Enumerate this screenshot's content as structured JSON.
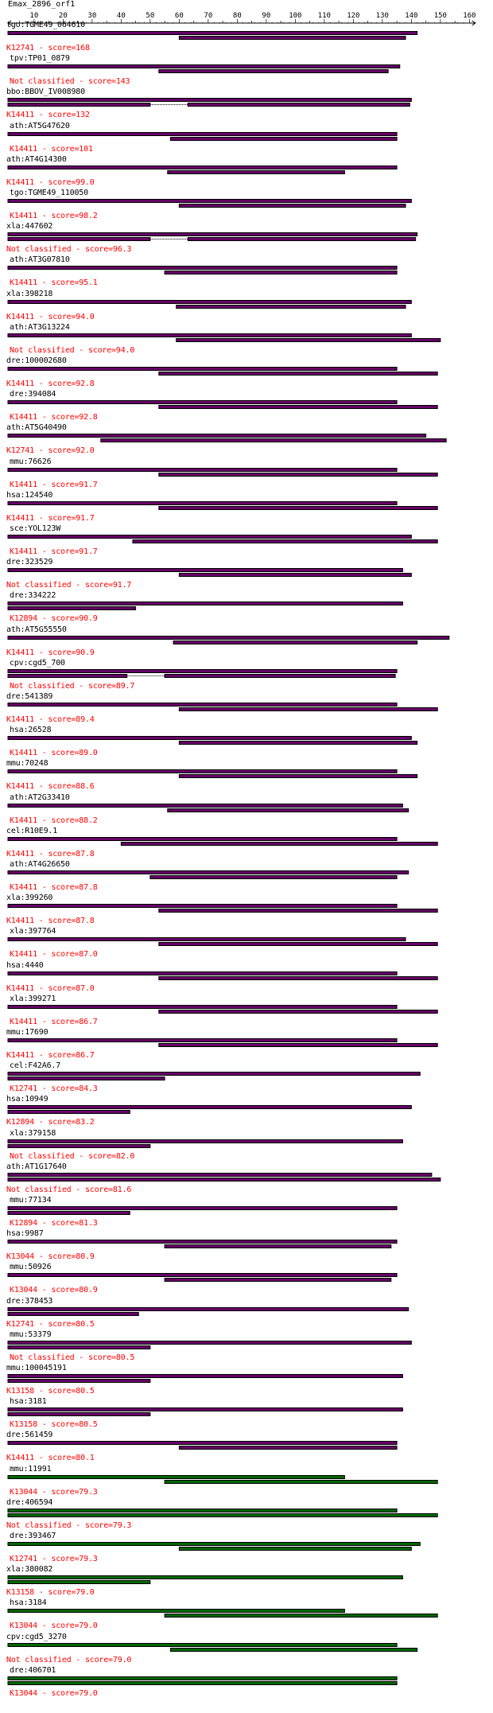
{
  "query": {
    "title": "Emax_2896_orf1",
    "ruler_ticks": [
      "10",
      "20",
      "30",
      "40",
      "50",
      "60",
      "70",
      "80",
      "90",
      "100",
      "110",
      "120",
      "130",
      "140",
      "150",
      "160"
    ],
    "length": 162
  },
  "colors": {
    "bar_purple": "#660066",
    "bar_green": "#006600",
    "bar_outline": "#000000",
    "score_text": "#ff0000",
    "gene_text": "#000000"
  },
  "entries": [
    {
      "gene": "tgo:TGME49_064610",
      "label": "K12741 - score=168",
      "color": "purple",
      "q": [
        1,
        142
      ],
      "h": [
        60,
        138
      ],
      "gap": false
    },
    {
      "gene": "tpv:TP01_0879",
      "label": "Not classified - score=143",
      "color": "purple",
      "q": [
        1,
        136
      ],
      "h": [
        53,
        132
      ],
      "gap": false
    },
    {
      "gene": "bbo:BBOV_IV008980",
      "label": "K14411 - score=132",
      "color": "purple",
      "q": [
        1,
        140
      ],
      "h": [
        1,
        50
      ],
      "gap": true
    },
    {
      "gene": "ath:AT5G47620",
      "label": "K14411 - score=101",
      "color": "purple",
      "q": [
        1,
        135
      ],
      "h": [
        57,
        135
      ],
      "gap": false
    },
    {
      "gene": "ath:AT4G14300",
      "label": "K14411 - score=99.0",
      "color": "purple",
      "q": [
        1,
        135
      ],
      "h": [
        56,
        117
      ],
      "gap": false
    },
    {
      "gene": "tgo:TGME49_110050",
      "label": "K14411 - score=98.2",
      "color": "purple",
      "q": [
        1,
        140
      ],
      "h": [
        60,
        138
      ],
      "gap": false
    },
    {
      "gene": "xla:447602",
      "label": "Not classified - score=96.3",
      "color": "purple",
      "q": [
        1,
        142
      ],
      "h": [
        1,
        50
      ],
      "gap": true
    },
    {
      "gene": "ath:AT3G07810",
      "label": "K14411 - score=95.1",
      "color": "purple",
      "q": [
        1,
        135
      ],
      "h": [
        55,
        135
      ],
      "gap": false
    },
    {
      "gene": "xla:398218",
      "label": "K14411 - score=94.0",
      "color": "purple",
      "q": [
        1,
        140
      ],
      "h": [
        59,
        138
      ],
      "gap": false
    },
    {
      "gene": "ath:AT3G13224",
      "label": "Not classified - score=94.0",
      "color": "purple",
      "q": [
        1,
        140
      ],
      "h": [
        59,
        150
      ],
      "gap": false
    },
    {
      "gene": "dre:100002680",
      "label": "K14411 - score=92.8",
      "color": "purple",
      "q": [
        1,
        135
      ],
      "h": [
        53,
        149
      ],
      "gap": false
    },
    {
      "gene": "dre:394084",
      "label": "K14411 - score=92.8",
      "color": "purple",
      "q": [
        1,
        135
      ],
      "h": [
        53,
        149
      ],
      "gap": false
    },
    {
      "gene": "ath:AT5G40490",
      "label": "K12741 - score=92.0",
      "color": "purple",
      "q": [
        1,
        145
      ],
      "h": [
        33,
        152
      ],
      "gap": false
    },
    {
      "gene": "mmu:76626",
      "label": "K14411 - score=91.7",
      "color": "purple",
      "q": [
        1,
        135
      ],
      "h": [
        53,
        149
      ],
      "gap": false
    },
    {
      "gene": "hsa:124540",
      "label": "K14411 - score=91.7",
      "color": "purple",
      "q": [
        1,
        135
      ],
      "h": [
        53,
        149
      ],
      "gap": false
    },
    {
      "gene": "sce:YOL123W",
      "label": "K14411 - score=91.7",
      "color": "purple",
      "q": [
        1,
        140
      ],
      "h": [
        44,
        149
      ],
      "gap": false
    },
    {
      "gene": "dre:323529",
      "label": "Not classified - score=91.7",
      "color": "purple",
      "q": [
        1,
        137
      ],
      "h": [
        60,
        140
      ],
      "gap": false
    },
    {
      "gene": "dre:334222",
      "label": "K12894 - score=90.9",
      "color": "purple",
      "q": [
        1,
        137
      ],
      "h": [
        1,
        45
      ],
      "gap": false
    },
    {
      "gene": "ath:AT5G55550",
      "label": "K14411 - score=90.9",
      "color": "purple",
      "q": [
        1,
        153
      ],
      "h": [
        58,
        142
      ],
      "gap": false
    },
    {
      "gene": "cpv:cgd5_700",
      "label": "Not classified - score=89.7",
      "color": "purple",
      "q": [
        1,
        135
      ],
      "h": [
        1,
        42
      ],
      "gap": true
    },
    {
      "gene": "dre:541389",
      "label": "K14411 - score=89.4",
      "color": "purple",
      "q": [
        1,
        135
      ],
      "h": [
        60,
        149
      ],
      "gap": false
    },
    {
      "gene": "hsa:26528",
      "label": "K14411 - score=89.0",
      "color": "purple",
      "q": [
        1,
        140
      ],
      "h": [
        60,
        142
      ],
      "gap": false
    },
    {
      "gene": "mmu:70248",
      "label": "K14411 - score=88.6",
      "color": "purple",
      "q": [
        1,
        135
      ],
      "h": [
        60,
        142
      ],
      "gap": false
    },
    {
      "gene": "ath:AT2G33410",
      "label": "K14411 - score=88.2",
      "color": "purple",
      "q": [
        1,
        137
      ],
      "h": [
        56,
        139
      ],
      "gap": false
    },
    {
      "gene": "cel:R10E9.1",
      "label": "K14411 - score=87.8",
      "color": "purple",
      "q": [
        1,
        135
      ],
      "h": [
        40,
        149
      ],
      "gap": false
    },
    {
      "gene": "ath:AT4G26650",
      "label": "K14411 - score=87.8",
      "color": "purple",
      "q": [
        1,
        139
      ],
      "h": [
        50,
        135
      ],
      "gap": false
    },
    {
      "gene": "xla:399260",
      "label": "K14411 - score=87.8",
      "color": "purple",
      "q": [
        1,
        135
      ],
      "h": [
        53,
        149
      ],
      "gap": false
    },
    {
      "gene": "xla:397764",
      "label": "K14411 - score=87.0",
      "color": "purple",
      "q": [
        1,
        138
      ],
      "h": [
        53,
        149
      ],
      "gap": false
    },
    {
      "gene": "hsa:4440",
      "label": "K14411 - score=87.0",
      "color": "purple",
      "q": [
        1,
        135
      ],
      "h": [
        53,
        149
      ],
      "gap": false
    },
    {
      "gene": "xla:399271",
      "label": "K14411 - score=86.7",
      "color": "purple",
      "q": [
        1,
        135
      ],
      "h": [
        53,
        149
      ],
      "gap": false
    },
    {
      "gene": "mmu:17690",
      "label": "K14411 - score=86.7",
      "color": "purple",
      "q": [
        1,
        135
      ],
      "h": [
        53,
        149
      ],
      "gap": false
    },
    {
      "gene": "cel:F42A6.7",
      "label": "K12741 - score=84.3",
      "color": "purple",
      "q": [
        1,
        143
      ],
      "h": [
        1,
        55
      ],
      "gap": false
    },
    {
      "gene": "hsa:10949",
      "label": "K12894 - score=83.2",
      "color": "purple",
      "q": [
        1,
        140
      ],
      "h": [
        1,
        43
      ],
      "gap": false
    },
    {
      "gene": "xla:379158",
      "label": "Not classified - score=82.0",
      "color": "purple",
      "q": [
        1,
        137
      ],
      "h": [
        1,
        50
      ],
      "gap": false
    },
    {
      "gene": "ath:AT1G17640",
      "label": "Not classified - score=81.6",
      "color": "purple",
      "q": [
        1,
        147
      ],
      "h": [
        1,
        150
      ],
      "gap": false
    },
    {
      "gene": "mmu:77134",
      "label": "K12894 - score=81.3",
      "color": "purple",
      "q": [
        1,
        135
      ],
      "h": [
        1,
        43
      ],
      "gap": false
    },
    {
      "gene": "hsa:9987",
      "label": "K13044 - score=80.9",
      "color": "purple",
      "q": [
        1,
        135
      ],
      "h": [
        55,
        133
      ],
      "gap": false
    },
    {
      "gene": "mmu:50926",
      "label": "K13044 - score=80.9",
      "color": "purple",
      "q": [
        1,
        135
      ],
      "h": [
        55,
        133
      ],
      "gap": false
    },
    {
      "gene": "dre:378453",
      "label": "K12741 - score=80.5",
      "color": "purple",
      "q": [
        1,
        139
      ],
      "h": [
        1,
        46
      ],
      "gap": false
    },
    {
      "gene": "mmu:53379",
      "label": "Not classified - score=80.5",
      "color": "purple",
      "q": [
        1,
        140
      ],
      "h": [
        1,
        50
      ],
      "gap": false
    },
    {
      "gene": "mmu:100045191",
      "label": "K13158 - score=80.5",
      "color": "purple",
      "q": [
        1,
        137
      ],
      "h": [
        1,
        50
      ],
      "gap": false
    },
    {
      "gene": "hsa:3181",
      "label": "K13158 - score=80.5",
      "color": "purple",
      "q": [
        1,
        137
      ],
      "h": [
        1,
        50
      ],
      "gap": false
    },
    {
      "gene": "dre:561459",
      "label": "K14411 - score=80.1",
      "color": "purple",
      "q": [
        1,
        135
      ],
      "h": [
        60,
        135
      ],
      "gap": false
    },
    {
      "gene": "mmu:11991",
      "label": "K13044 - score=79.3",
      "color": "green",
      "q": [
        1,
        117
      ],
      "h": [
        55,
        149
      ],
      "gap": false
    },
    {
      "gene": "dre:406594",
      "label": "Not classified - score=79.3",
      "color": "green",
      "q": [
        1,
        135
      ],
      "h": [
        1,
        149
      ],
      "gap": false
    },
    {
      "gene": "dre:393467",
      "label": "K12741 - score=79.3",
      "color": "green",
      "q": [
        1,
        143
      ],
      "h": [
        60,
        140
      ],
      "gap": false
    },
    {
      "gene": "xla:380082",
      "label": "K13158 - score=79.0",
      "color": "green",
      "q": [
        1,
        137
      ],
      "h": [
        1,
        50
      ],
      "gap": false
    },
    {
      "gene": "hsa:3184",
      "label": "K13044 - score=79.0",
      "color": "green",
      "q": [
        1,
        117
      ],
      "h": [
        55,
        149
      ],
      "gap": false
    },
    {
      "gene": "cpv:cgd5_3270",
      "label": "Not classified - score=79.0",
      "color": "green",
      "q": [
        1,
        135
      ],
      "h": [
        57,
        142
      ],
      "gap": false
    },
    {
      "gene": "dre:406701",
      "label": "K13044 - score=79.0",
      "color": "green",
      "q": [
        1,
        135
      ],
      "h": [
        1,
        135
      ],
      "gap": false
    }
  ]
}
